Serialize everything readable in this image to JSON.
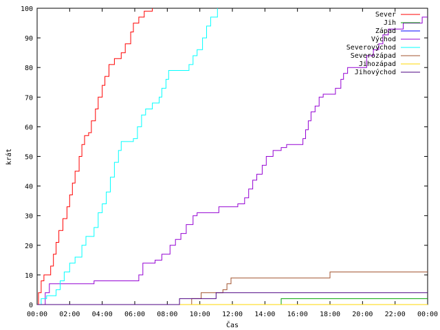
{
  "chart_data": {
    "type": "line",
    "title": "",
    "xlabel": "Čas",
    "ylabel": "krát",
    "xlim": [
      "00:00",
      "24:00"
    ],
    "ylim": [
      0,
      100
    ],
    "x_ticks": [
      "00:00",
      "02:00",
      "04:00",
      "06:00",
      "08:00",
      "10:00",
      "12:00",
      "14:00",
      "16:00",
      "18:00",
      "20:00",
      "22:00",
      "00:00"
    ],
    "y_ticks": [
      0,
      10,
      20,
      30,
      40,
      50,
      60,
      70,
      80,
      90,
      100
    ],
    "grid": false,
    "legend_position": "top-right",
    "series": [
      {
        "name": "Sever",
        "color": "#ff0000",
        "points": [
          [
            "00:00",
            0
          ],
          [
            "00:05",
            4
          ],
          [
            "00:15",
            8
          ],
          [
            "00:25",
            10
          ],
          [
            "00:50",
            13
          ],
          [
            "01:00",
            17
          ],
          [
            "01:10",
            21
          ],
          [
            "01:20",
            25
          ],
          [
            "01:35",
            29
          ],
          [
            "01:50",
            33
          ],
          [
            "02:00",
            37
          ],
          [
            "02:10",
            41
          ],
          [
            "02:20",
            45
          ],
          [
            "02:35",
            50
          ],
          [
            "02:45",
            54
          ],
          [
            "02:55",
            57
          ],
          [
            "03:10",
            58
          ],
          [
            "03:20",
            62
          ],
          [
            "03:35",
            66
          ],
          [
            "03:45",
            70
          ],
          [
            "04:00",
            74
          ],
          [
            "04:10",
            77
          ],
          [
            "04:25",
            81
          ],
          [
            "04:45",
            83
          ],
          [
            "05:10",
            85
          ],
          [
            "05:25",
            88
          ],
          [
            "05:45",
            92
          ],
          [
            "05:55",
            95
          ],
          [
            "06:15",
            97
          ],
          [
            "06:35",
            99
          ],
          [
            "07:05",
            100
          ]
        ]
      },
      {
        "name": "Jih",
        "color": "#00a000",
        "points": [
          [
            "00:00",
            0
          ],
          [
            "15:00",
            0
          ],
          [
            "15:00",
            2
          ],
          [
            "24:00",
            2
          ]
        ]
      },
      {
        "name": "Západ",
        "color": "#0000ff",
        "points": [
          [
            "00:00",
            0
          ],
          [
            "24:00",
            0
          ]
        ]
      },
      {
        "name": "Východ",
        "color": "#9400d3",
        "points": [
          [
            "00:00",
            0
          ],
          [
            "00:30",
            4
          ],
          [
            "00:45",
            7
          ],
          [
            "02:30",
            7
          ],
          [
            "03:30",
            8
          ],
          [
            "06:00",
            8
          ],
          [
            "06:15",
            10
          ],
          [
            "06:30",
            14
          ],
          [
            "07:15",
            15
          ],
          [
            "07:40",
            17
          ],
          [
            "08:10",
            20
          ],
          [
            "08:30",
            22
          ],
          [
            "08:50",
            24
          ],
          [
            "09:10",
            27
          ],
          [
            "09:35",
            30
          ],
          [
            "09:50",
            31
          ],
          [
            "11:00",
            31
          ],
          [
            "11:10",
            33
          ],
          [
            "12:20",
            34
          ],
          [
            "12:45",
            36
          ],
          [
            "13:00",
            39
          ],
          [
            "13:15",
            42
          ],
          [
            "13:30",
            44
          ],
          [
            "13:50",
            47
          ],
          [
            "14:05",
            50
          ],
          [
            "14:30",
            52
          ],
          [
            "15:00",
            53
          ],
          [
            "15:20",
            54
          ],
          [
            "16:20",
            56
          ],
          [
            "16:30",
            59
          ],
          [
            "16:40",
            62
          ],
          [
            "16:50",
            65
          ],
          [
            "17:05",
            67
          ],
          [
            "17:20",
            70
          ],
          [
            "17:35",
            71
          ],
          [
            "18:20",
            73
          ],
          [
            "18:40",
            76
          ],
          [
            "18:50",
            78
          ],
          [
            "19:05",
            80
          ],
          [
            "20:00",
            80
          ],
          [
            "20:15",
            84
          ],
          [
            "20:40",
            86
          ],
          [
            "21:00",
            88
          ],
          [
            "21:15",
            91
          ],
          [
            "21:35",
            93
          ],
          [
            "22:30",
            95
          ],
          [
            "23:40",
            97
          ],
          [
            "24:00",
            97
          ]
        ]
      },
      {
        "name": "Severovýchod",
        "color": "#00ffff",
        "points": [
          [
            "00:00",
            0
          ],
          [
            "00:15",
            2
          ],
          [
            "00:35",
            3
          ],
          [
            "01:10",
            5
          ],
          [
            "01:25",
            8
          ],
          [
            "01:40",
            11
          ],
          [
            "02:00",
            14
          ],
          [
            "02:20",
            16
          ],
          [
            "02:45",
            20
          ],
          [
            "03:00",
            23
          ],
          [
            "03:30",
            26
          ],
          [
            "03:45",
            31
          ],
          [
            "04:00",
            34
          ],
          [
            "04:15",
            38
          ],
          [
            "04:30",
            43
          ],
          [
            "04:45",
            48
          ],
          [
            "05:00",
            52
          ],
          [
            "05:10",
            55
          ],
          [
            "05:55",
            56
          ],
          [
            "06:10",
            60
          ],
          [
            "06:25",
            64
          ],
          [
            "06:40",
            66
          ],
          [
            "07:05",
            68
          ],
          [
            "07:30",
            70
          ],
          [
            "07:40",
            73
          ],
          [
            "07:55",
            76
          ],
          [
            "08:05",
            79
          ],
          [
            "09:05",
            79
          ],
          [
            "09:20",
            81
          ],
          [
            "09:35",
            84
          ],
          [
            "09:50",
            86
          ],
          [
            "10:10",
            90
          ],
          [
            "10:25",
            94
          ],
          [
            "10:40",
            97
          ],
          [
            "11:05",
            100
          ]
        ]
      },
      {
        "name": "Severozápad",
        "color": "#a0522d",
        "points": [
          [
            "00:00",
            0
          ],
          [
            "09:20",
            0
          ],
          [
            "09:30",
            2
          ],
          [
            "10:05",
            4
          ],
          [
            "11:25",
            5
          ],
          [
            "11:40",
            7
          ],
          [
            "11:55",
            9
          ],
          [
            "17:50",
            9
          ],
          [
            "18:00",
            11
          ],
          [
            "24:00",
            11
          ]
        ]
      },
      {
        "name": "Jihozápad",
        "color": "#ffd700",
        "points": [
          [
            "00:00",
            0
          ],
          [
            "24:00",
            0
          ]
        ]
      },
      {
        "name": "Jihovýchod",
        "color": "#4b0082",
        "points": [
          [
            "00:00",
            0
          ],
          [
            "08:45",
            0
          ],
          [
            "08:45",
            2
          ],
          [
            "11:00",
            2
          ],
          [
            "11:00",
            4
          ],
          [
            "24:00",
            4
          ]
        ]
      }
    ]
  }
}
